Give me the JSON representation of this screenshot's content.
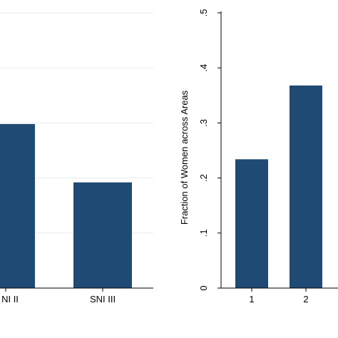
{
  "chart_data": [
    {
      "type": "bar",
      "categories": [
        "SNI II",
        "SNI III"
      ],
      "values": [
        0.298,
        0.192
      ],
      "ylim": [
        0,
        0.5
      ],
      "yticks_shown": false,
      "grid": true,
      "bar_color": "#1f4a73",
      "xlabel": "",
      "ylabel": "",
      "truncated_category": "NI II"
    },
    {
      "type": "bar",
      "categories": [
        "1",
        "2"
      ],
      "values": [
        0.234,
        0.368
      ],
      "ylim": [
        0,
        0.5
      ],
      "yticks": [
        0,
        0.1,
        0.2,
        0.3,
        0.4,
        0.5
      ],
      "ytick_labels": [
        "0",
        ".1",
        ".2",
        ".3",
        ".4",
        ".5"
      ],
      "ylabel": "Fraction of Women across Areas",
      "xlabel": "",
      "grid": false,
      "bar_color": "#1f4a73"
    }
  ]
}
